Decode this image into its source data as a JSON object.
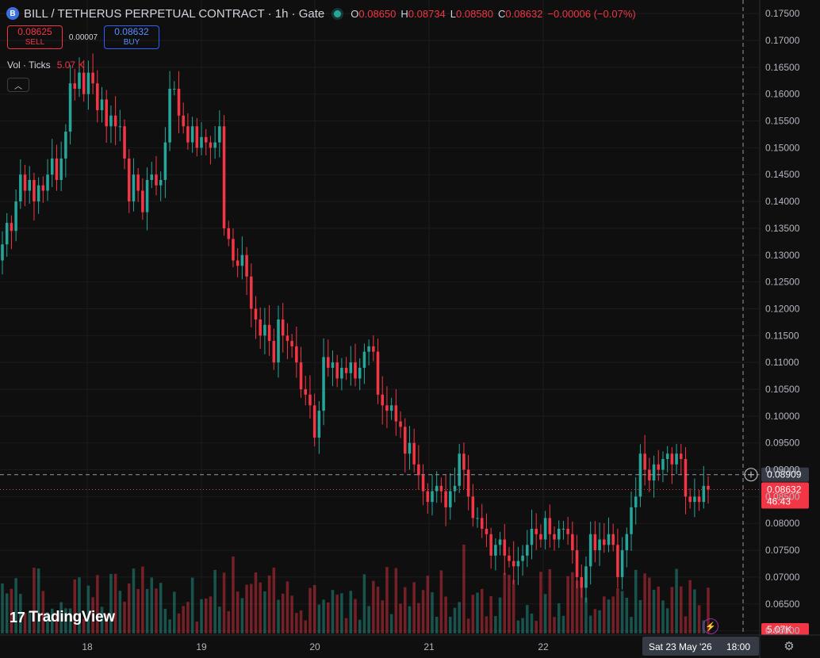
{
  "header": {
    "coin_icon": "B",
    "title": "BILL / TETHERUS PERPETUAL CONTRACT · 1h · Gate",
    "open_label": "O",
    "open": "0.08650",
    "high_label": "H",
    "high": "0.08734",
    "low_label": "L",
    "low": "0.08580",
    "close_label": "C",
    "close": "0.08632",
    "change": "−0.00006 (−0.07%)"
  },
  "trade": {
    "sell_price": "0.08625",
    "sell_label": "SELL",
    "spread": "0.00007",
    "buy_price": "0.08632",
    "buy_label": "BUY"
  },
  "volume_legend": {
    "label": "Vol · Ticks",
    "value": "5.07 K"
  },
  "colors": {
    "up": "#26a69a",
    "down": "#f23645",
    "background": "#0f0f0f",
    "grid": "#1c1c1c",
    "crosshair_label": "#363a45"
  },
  "icons": {
    "coin": "bill-coin-icon",
    "collapse": "chevron-up-icon",
    "add": "plus-circle-icon",
    "zap": "lightning-icon",
    "settings": "gear-icon",
    "logo": "tradingview-logo"
  },
  "logo_text": "TradingView",
  "crosshair": {
    "price_label": "0.08909",
    "time_label": "Sat 23 May '26",
    "time_label_2": "18:00"
  },
  "last_price": {
    "price": "0.08632",
    "countdown": "46:43"
  },
  "volume_badge": "5.07K",
  "chart_data": {
    "type": "candlestick",
    "interval": "1h",
    "price_axis": {
      "ticks": [
        "0.17500",
        "0.17000",
        "0.16500",
        "0.16000",
        "0.15500",
        "0.15000",
        "0.14500",
        "0.14000",
        "0.13500",
        "0.13000",
        "0.12500",
        "0.12000",
        "0.11500",
        "0.11000",
        "0.10500",
        "0.10000",
        "0.09500",
        "0.09000",
        "0.08500",
        "0.08000",
        "0.07500",
        "0.07000",
        "0.06500",
        "0.06000"
      ],
      "range": [
        0.0595,
        0.1765
      ],
      "position": "right"
    },
    "time_axis": {
      "ticks": [
        "18",
        "19",
        "20",
        "21",
        "22"
      ]
    },
    "crosshair_price": 0.08909,
    "last_price": 0.08632,
    "candles_close": [
      0.132,
      0.136,
      0.1345,
      0.14,
      0.145,
      0.142,
      0.144,
      0.14,
      0.143,
      0.142,
      0.145,
      0.148,
      0.144,
      0.148,
      0.153,
      0.162,
      0.161,
      0.164,
      0.16,
      0.164,
      0.162,
      0.157,
      0.159,
      0.154,
      0.156,
      0.154,
      0.154,
      0.148,
      0.14,
      0.145,
      0.142,
      0.138,
      0.144,
      0.145,
      0.143,
      0.144,
      0.151,
      0.161,
      0.161,
      0.156,
      0.154,
      0.151,
      0.154,
      0.15,
      0.152,
      0.151,
      0.15,
      0.151,
      0.154,
      0.135,
      0.133,
      0.129,
      0.128,
      0.13,
      0.126,
      0.12,
      0.118,
      0.115,
      0.117,
      0.114,
      0.11,
      0.118,
      0.115,
      0.114,
      0.113,
      0.11,
      0.105,
      0.104,
      0.102,
      0.096,
      0.101,
      0.111,
      0.109,
      0.11,
      0.107,
      0.109,
      0.108,
      0.11,
      0.107,
      0.109,
      0.112,
      0.113,
      0.112,
      0.104,
      0.102,
      0.101,
      0.102,
      0.099,
      0.098,
      0.093,
      0.095,
      0.091,
      0.089,
      0.086,
      0.084,
      0.086,
      0.087,
      0.086,
      0.083,
      0.086,
      0.087,
      0.093,
      0.09,
      0.085,
      0.081,
      0.081,
      0.079,
      0.078,
      0.074,
      0.076,
      0.077,
      0.074,
      0.073,
      0.072,
      0.073,
      0.074,
      0.076,
      0.079,
      0.078,
      0.077,
      0.081,
      0.078,
      0.077,
      0.079,
      0.079,
      0.078,
      0.075,
      0.07,
      0.068,
      0.072,
      0.078,
      0.075,
      0.077,
      0.076,
      0.078,
      0.076,
      0.07,
      0.075,
      0.078,
      0.083,
      0.085,
      0.093,
      0.09,
      0.088,
      0.091,
      0.09,
      0.092,
      0.093,
      0.091,
      0.093,
      0.092,
      0.085,
      0.084,
      0.085,
      0.084,
      0.087,
      0.0863
    ],
    "volume_axis_label": "5.07K"
  }
}
